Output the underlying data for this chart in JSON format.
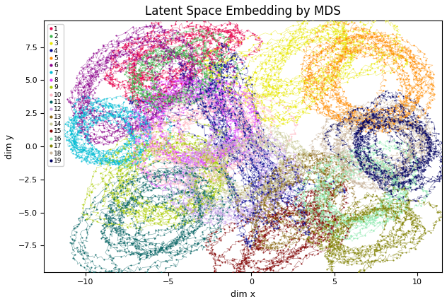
{
  "title": "Latent Space Embedding by MDS",
  "xlabel": "dim x",
  "ylabel": "dim y",
  "xlim": [
    -12.5,
    11.5
  ],
  "ylim": [
    -9.5,
    9.5
  ],
  "xticks": [
    -10,
    -5,
    0,
    5,
    10
  ],
  "yticks": [
    -7.5,
    -5.0,
    -2.5,
    0.0,
    2.5,
    5.0,
    7.5
  ],
  "n_series": 19,
  "colors": [
    "#e6004b",
    "#3cb44b",
    "#e8e800",
    "#00008b",
    "#ff8c00",
    "#8b008b",
    "#00bcd4",
    "#e040fb",
    "#aacc00",
    "#ffb6c1",
    "#006060",
    "#c8a0e8",
    "#8b6914",
    "#c8c896",
    "#800000",
    "#88e8aa",
    "#808000",
    "#c8b49b",
    "#000060"
  ],
  "figsize": [
    6.32,
    4.3
  ],
  "dpi": 100,
  "title_fontsize": 12,
  "label_fontsize": 9,
  "legend_fontsize": 6.5,
  "marker_size": 1.2,
  "linewidth": 0.4,
  "alpha_line": 0.6,
  "alpha_dot": 0.8
}
